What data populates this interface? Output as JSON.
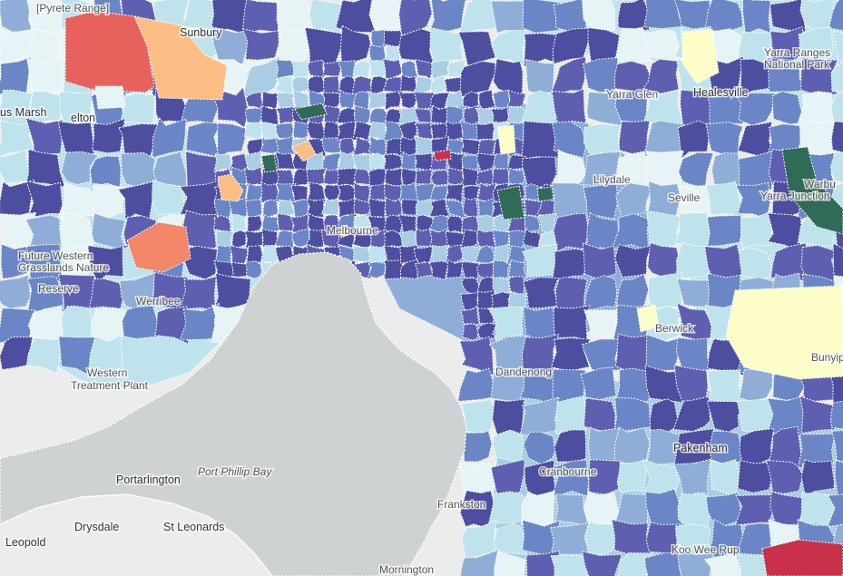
{
  "colors": {
    "land": "#ebecec",
    "water": "#cfd2d3",
    "boundary": "#ffffff",
    "ramp": [
      "#fefec8",
      "#e7f4f6",
      "#bfe3ec",
      "#a9cde3",
      "#8eaed8",
      "#6a86c6",
      "#5e5fb0",
      "#4d4ea0"
    ],
    "high_orange": "#fdbe85",
    "high_salmon": "#f4876a",
    "high_red": "#e8625d",
    "deep_red": "#c9304a",
    "dark_green": "#2f6b58"
  },
  "icons": [
    "map-canvas"
  ],
  "labels": [
    {
      "id": "pyrete-range",
      "text": "[Pyrete Range]",
      "style": "lbl"
    },
    {
      "id": "sunbury",
      "text": "Sunbury",
      "style": "lbl-dark"
    },
    {
      "id": "bacchus-marsh",
      "text": "us Marsh",
      "style": "lbl-dark"
    },
    {
      "id": "melton",
      "text": "elton",
      "style": "lbl-dark"
    },
    {
      "id": "yarra-ranges-np",
      "text": "Yarra Ranges",
      "style": "lbl"
    },
    {
      "id": "yarra-ranges-np-2",
      "text": "National Park",
      "style": "lbl"
    },
    {
      "id": "healesville",
      "text": "Healesville",
      "style": "lbl-dark"
    },
    {
      "id": "yarra-glen",
      "text": "Yarra Glen",
      "style": "lbl"
    },
    {
      "id": "lilydale",
      "text": "Lilydale",
      "style": "lbl"
    },
    {
      "id": "seville",
      "text": "Seville",
      "style": "lbl"
    },
    {
      "id": "yarra-junction",
      "text": "Yarra Junction",
      "style": "lbl"
    },
    {
      "id": "warburton",
      "text": "Warbu",
      "style": "lbl"
    },
    {
      "id": "future-grasslands-1",
      "text": "Future Western",
      "style": "lbl"
    },
    {
      "id": "future-grasslands-2",
      "text": "Grasslands Nature",
      "style": "lbl"
    },
    {
      "id": "future-grasslands-3",
      "text": "Reserve",
      "style": "lbl"
    },
    {
      "id": "werribee",
      "text": "Werribee",
      "style": "lbl"
    },
    {
      "id": "melbourne",
      "text": "Melbourne",
      "style": "lbl"
    },
    {
      "id": "dandenong",
      "text": "Dandenong",
      "style": "lbl"
    },
    {
      "id": "berwick",
      "text": "Berwick",
      "style": "lbl"
    },
    {
      "id": "bunyip",
      "text": "Bunyip",
      "style": "lbl"
    },
    {
      "id": "pakenham",
      "text": "Pakenham",
      "style": "lbl-dark"
    },
    {
      "id": "western-treatment-1",
      "text": "Western",
      "style": "lbl"
    },
    {
      "id": "western-treatment-2",
      "text": "Treatment Plant",
      "style": "lbl"
    },
    {
      "id": "port-phillip-bay",
      "text": "Port Phillip Bay",
      "style": "lbl-it"
    },
    {
      "id": "portarlington",
      "text": "Portarlington",
      "style": "lbl-dark"
    },
    {
      "id": "drysdale",
      "text": "Drysdale",
      "style": "lbl-dark"
    },
    {
      "id": "st-leonards",
      "text": "St Leonards",
      "style": "lbl-dark"
    },
    {
      "id": "leopold",
      "text": "Leopold",
      "style": "lbl-dark"
    },
    {
      "id": "frankston",
      "text": "Frankston",
      "style": "lbl"
    },
    {
      "id": "cranbourne",
      "text": "Cranbourne",
      "style": "lbl"
    },
    {
      "id": "koo-wee-rup",
      "text": "Koo Wee Rup",
      "style": "lbl"
    },
    {
      "id": "mornington",
      "text": "Mornington",
      "style": "lbl"
    }
  ]
}
